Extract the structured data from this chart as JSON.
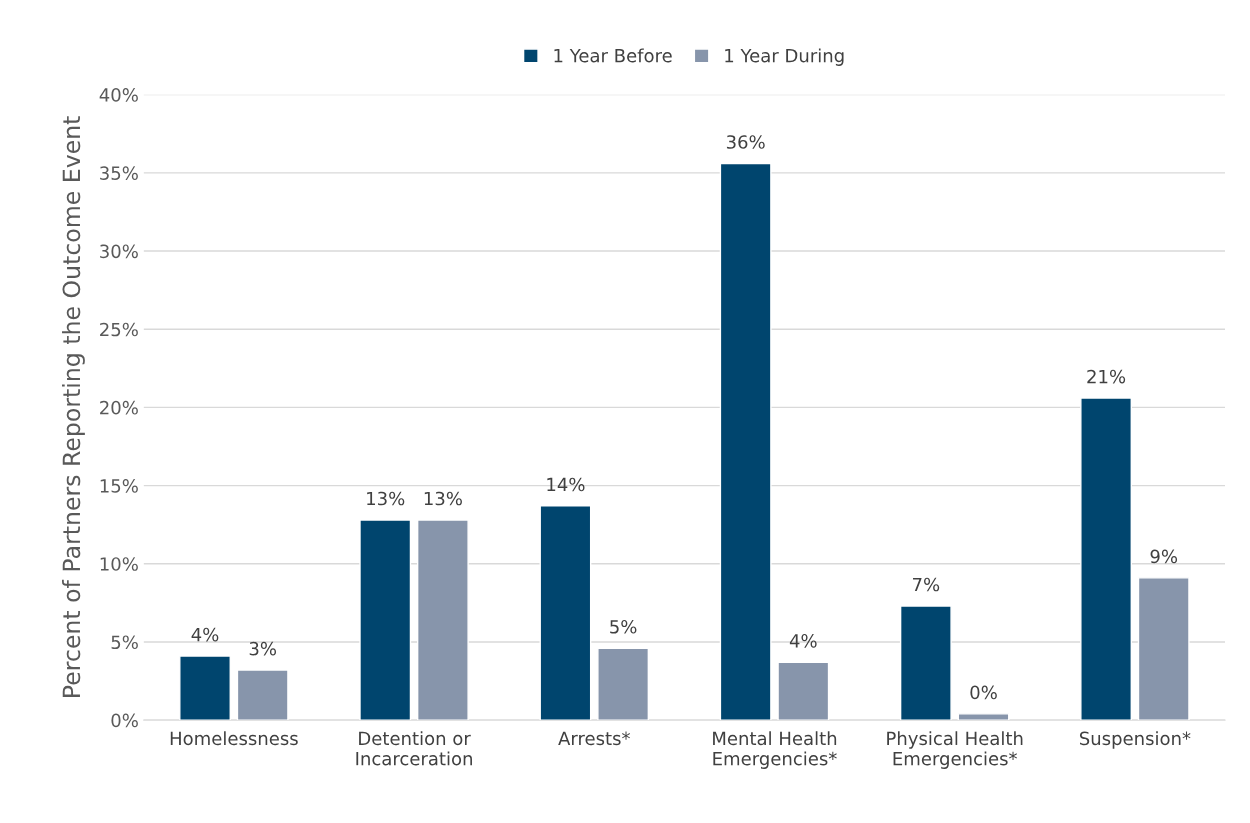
{
  "chart_data": {
    "type": "bar",
    "ylabel": "Percent of Partners Reporting the Outcome Event",
    "categories": [
      "Homelessness",
      "Detention or\nIncarceration",
      "Arrests*",
      "Mental Health\nEmergencies*",
      "Physical Health\nEmergencies*",
      "Suspension*"
    ],
    "series": [
      {
        "name": "1 Year Before",
        "color": "#00456e",
        "values": [
          4.1,
          12.8,
          13.7,
          35.6,
          7.3,
          20.6
        ],
        "value_labels": [
          "4%",
          "13%",
          "14%",
          "36%",
          "7%",
          "21%"
        ]
      },
      {
        "name": "1 Year During",
        "color": "#8795ab",
        "values": [
          3.2,
          12.8,
          4.6,
          3.7,
          0.4,
          9.1
        ],
        "value_labels": [
          "3%",
          "13%",
          "5%",
          "4%",
          "0%",
          "9%"
        ]
      }
    ],
    "ylim": [
      0,
      40
    ],
    "yticks": [
      {
        "value": 0,
        "label": "0%"
      },
      {
        "value": 5,
        "label": "5%"
      },
      {
        "value": 10,
        "label": "10%"
      },
      {
        "value": 15,
        "label": "15%"
      },
      {
        "value": 20,
        "label": "20%"
      },
      {
        "value": 25,
        "label": "25%"
      },
      {
        "value": 30,
        "label": "30%"
      },
      {
        "value": 35,
        "label": "35%"
      },
      {
        "value": 40,
        "label": "40%"
      }
    ],
    "grid": "y",
    "legend": "top"
  }
}
